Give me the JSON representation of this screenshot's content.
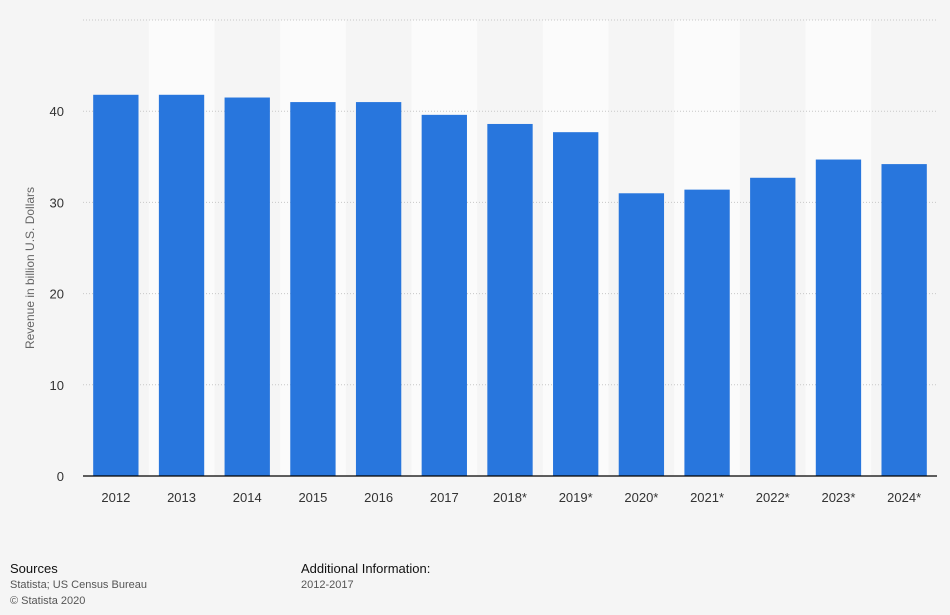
{
  "chart_data": {
    "type": "bar",
    "categories": [
      "2012",
      "2013",
      "2014",
      "2015",
      "2016",
      "2017",
      "2018*",
      "2019*",
      "2020*",
      "2021*",
      "2022*",
      "2023*",
      "2024*"
    ],
    "values": [
      41.8,
      41.8,
      41.5,
      41.0,
      41.0,
      39.6,
      38.6,
      37.7,
      31.0,
      31.4,
      32.7,
      34.7,
      34.2
    ],
    "title": "",
    "xlabel": "",
    "ylabel": "Revenue in billion U.S. Dollars",
    "ylim": [
      0,
      50
    ],
    "yticks": [
      0,
      10,
      20,
      30,
      40
    ],
    "grid": true,
    "bar_color": "#2876dd"
  },
  "footer": {
    "sources_heading": "Sources",
    "sources_line1": "Statista; US Census Bureau",
    "sources_line2": "© Statista 2020",
    "additional_heading": "Additional Information:",
    "additional_line1": "2012-2017"
  }
}
